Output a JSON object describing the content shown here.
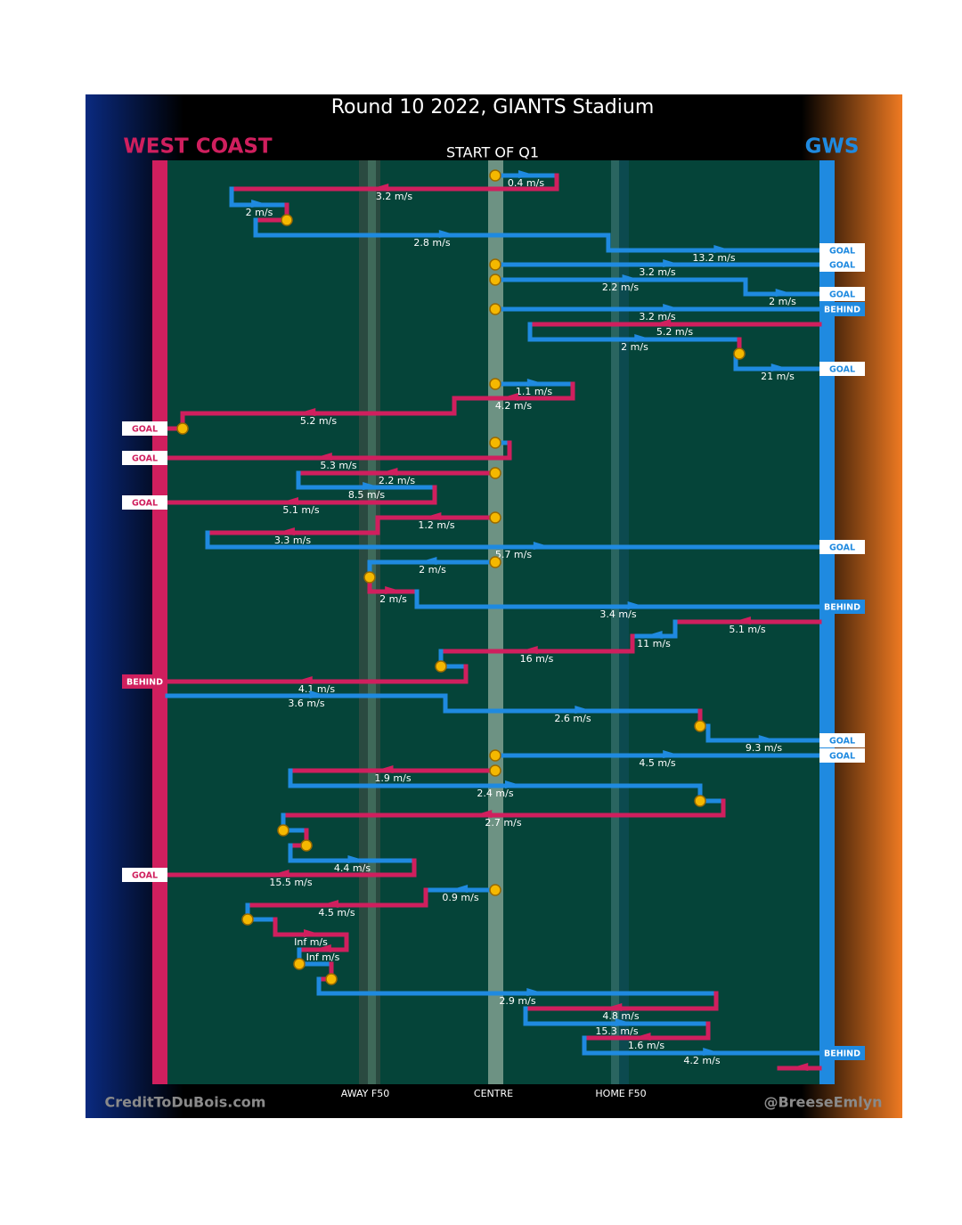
{
  "header": {
    "title": "Round 10 2022, GIANTS Stadium",
    "left_team": "WEST COAST",
    "right_team": "GWS",
    "period": "START OF Q1"
  },
  "zones": [
    "AWAY F50",
    "CENTRE",
    "HOME F50"
  ],
  "footer": {
    "left": "CreditToDuBois.com",
    "right": "@BreeseEmlyn"
  },
  "speeds": [
    "0.4 m/s",
    "3.2 m/s",
    "2 m/s",
    "2.8 m/s",
    "13.2 m/s",
    "3.2 m/s",
    "2.2 m/s",
    "2 m/s",
    "3.2 m/s",
    "5.2 m/s",
    "2 m/s",
    "21 m/s",
    "1.1 m/s",
    "4.2 m/s",
    "5.2 m/s",
    "5.3 m/s",
    "2.2 m/s",
    "8.5 m/s",
    "5.1 m/s",
    "1.2 m/s",
    "3.3 m/s",
    "5.7 m/s",
    "2 m/s",
    "2 m/s",
    "3.4 m/s",
    "5.1 m/s",
    "11 m/s",
    "16 m/s",
    "4.1 m/s",
    "3.6 m/s",
    "2.6 m/s",
    "9.3 m/s",
    "4.5 m/s",
    "1.9 m/s",
    "2.4 m/s",
    "2.7 m/s",
    "4.4 m/s",
    "15.5 m/s",
    "0.9 m/s",
    "4.5 m/s",
    "Inf m/s",
    "Inf m/s",
    "2.9 m/s",
    "4.8 m/s",
    "15.3 m/s",
    "1.6 m/s",
    "4.2 m/s"
  ],
  "outcomes": [
    "GOAL",
    "GOAL",
    "GOAL",
    "BEHIND",
    "GOAL",
    "GOAL",
    "GOAL",
    "GOAL",
    "GOAL",
    "BEHIND",
    "BEHIND",
    "GOAL",
    "GOAL",
    "GOAL",
    "BEHIND"
  ]
}
